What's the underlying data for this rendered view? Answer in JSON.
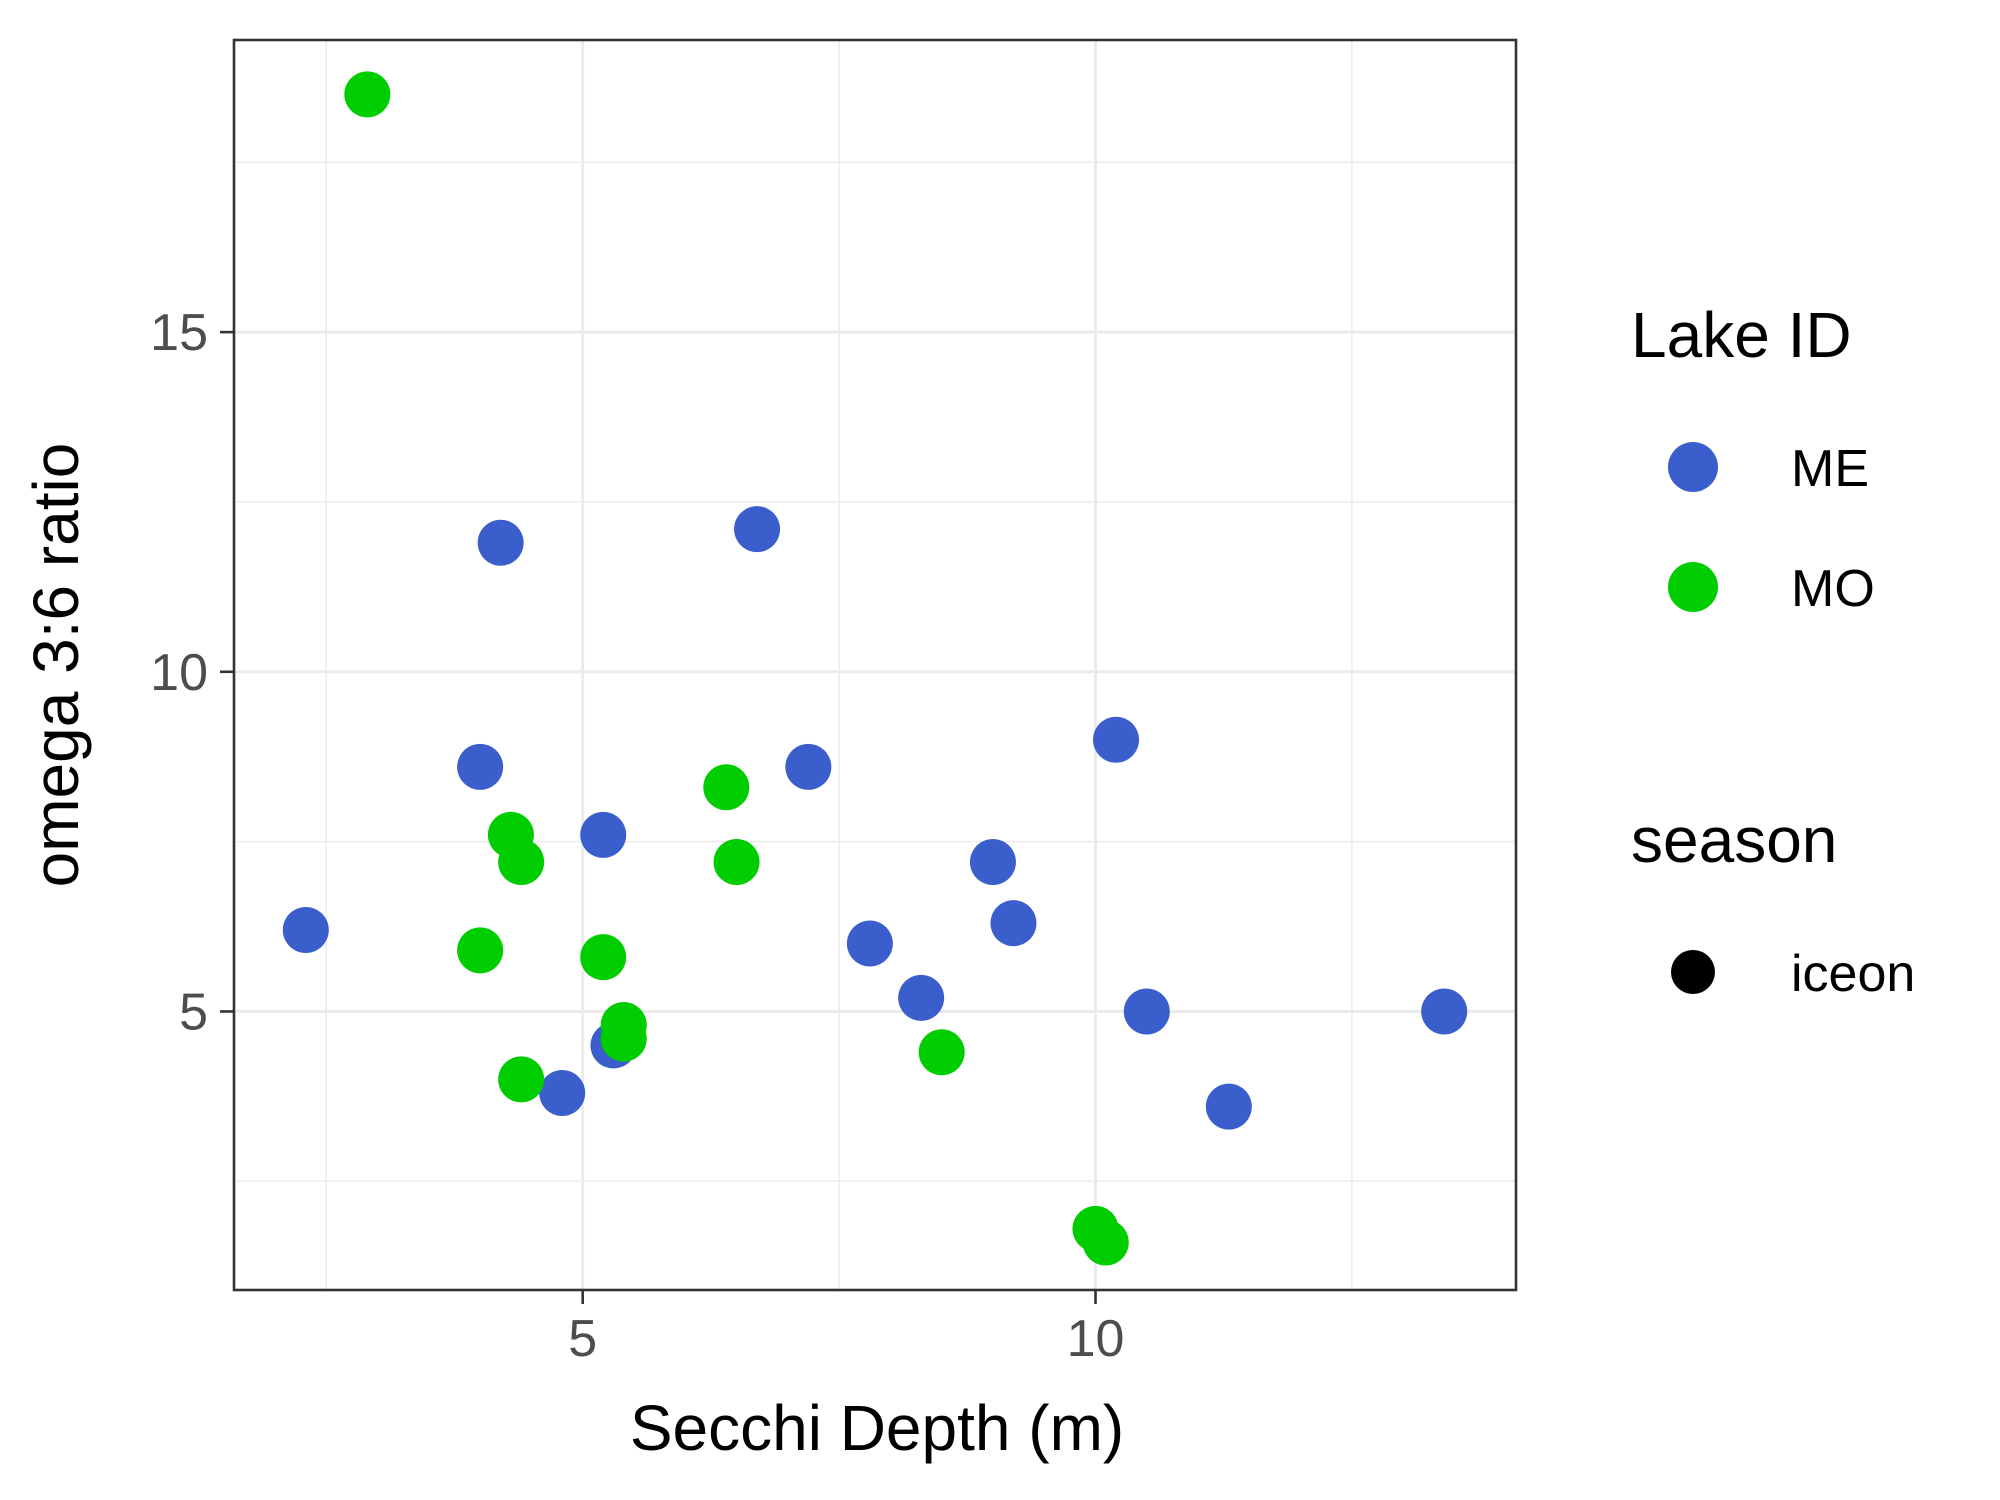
{
  "chart_data": {
    "type": "scatter",
    "title": "",
    "xlabel": "Secchi Depth (m)",
    "ylabel": "omega 3:6 ratio",
    "xlim": [
      1.6,
      14.1
    ],
    "ylim": [
      0.9,
      19.3
    ],
    "x_ticks": [
      5,
      10
    ],
    "x_tick_labels": [
      "5",
      "10"
    ],
    "x_minor_ticks": [
      2.5,
      7.5,
      12.5
    ],
    "y_ticks": [
      5,
      10,
      15
    ],
    "y_tick_labels": [
      "5",
      "10",
      "15"
    ],
    "y_minor_ticks": [
      2.5,
      7.5,
      12.5,
      17.5
    ],
    "grid": true,
    "legend_position": "right",
    "legend": {
      "color_title": "Lake ID",
      "shape_title": "season",
      "shape_label": "iceon",
      "shape_color": "#000000"
    },
    "series": [
      {
        "name": "ME",
        "color": "#3a5fcd",
        "points": [
          [
            2.3,
            6.2
          ],
          [
            4.2,
            11.9
          ],
          [
            6.7,
            12.1
          ],
          [
            4.0,
            8.6
          ],
          [
            5.2,
            7.6
          ],
          [
            7.2,
            8.6
          ],
          [
            5.3,
            4.5
          ],
          [
            4.8,
            3.8
          ],
          [
            7.8,
            6.0
          ],
          [
            8.3,
            5.2
          ],
          [
            9.0,
            7.2
          ],
          [
            9.2,
            6.3
          ],
          [
            10.2,
            9.0
          ],
          [
            10.5,
            5.0
          ],
          [
            11.3,
            3.6
          ],
          [
            13.4,
            5.0
          ]
        ]
      },
      {
        "name": "MO",
        "color": "#00cd00",
        "points": [
          [
            2.9,
            18.5
          ],
          [
            4.3,
            7.6
          ],
          [
            4.4,
            7.2
          ],
          [
            4.0,
            5.9
          ],
          [
            5.2,
            5.8
          ],
          [
            6.4,
            8.3
          ],
          [
            6.5,
            7.2
          ],
          [
            5.4,
            4.8
          ],
          [
            5.4,
            4.6
          ],
          [
            4.4,
            4.0
          ],
          [
            8.5,
            4.4
          ],
          [
            10.0,
            1.8
          ],
          [
            10.1,
            1.6
          ]
        ]
      }
    ]
  }
}
